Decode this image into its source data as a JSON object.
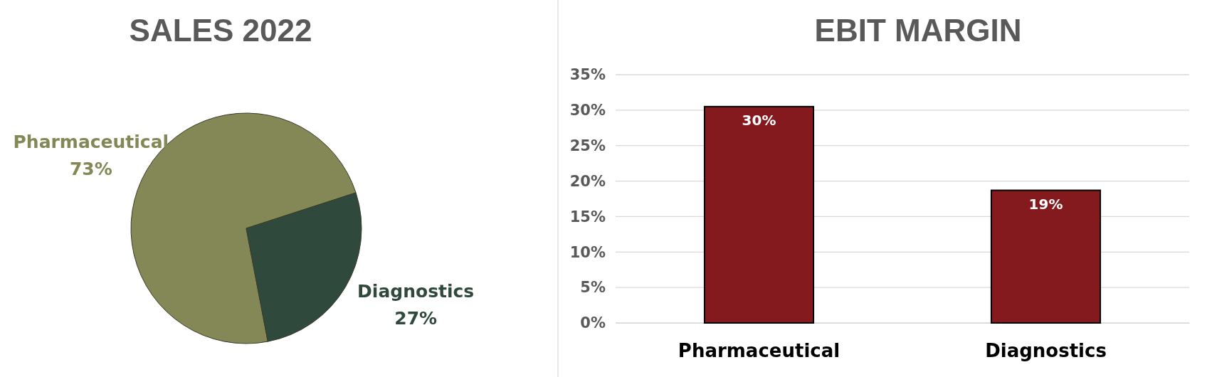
{
  "chart_data": [
    {
      "type": "pie",
      "title": "SALES 2022",
      "categories": [
        "Pharmaceutical",
        "Diagnostics"
      ],
      "values": [
        73,
        27
      ],
      "colors": [
        "#848857",
        "#2f4a3c"
      ],
      "value_labels": [
        "73%",
        "27%"
      ]
    },
    {
      "type": "bar",
      "title": "EBIT MARGIN",
      "categories": [
        "Pharmaceutical",
        "Diagnostics"
      ],
      "values": [
        30.5,
        18.7
      ],
      "value_labels": [
        "30%",
        "19%"
      ],
      "color": "#841a1d",
      "ylim": [
        0,
        35
      ],
      "yticks": [
        {
          "value": 0,
          "label": "0%"
        },
        {
          "value": 5,
          "label": "5%"
        },
        {
          "value": 10,
          "label": "10%"
        },
        {
          "value": 15,
          "label": "15%"
        },
        {
          "value": 20,
          "label": "20%"
        },
        {
          "value": 25,
          "label": "25%"
        },
        {
          "value": 30,
          "label": "30%"
        },
        {
          "value": 35,
          "label": "35%"
        }
      ],
      "grid": "y"
    }
  ]
}
